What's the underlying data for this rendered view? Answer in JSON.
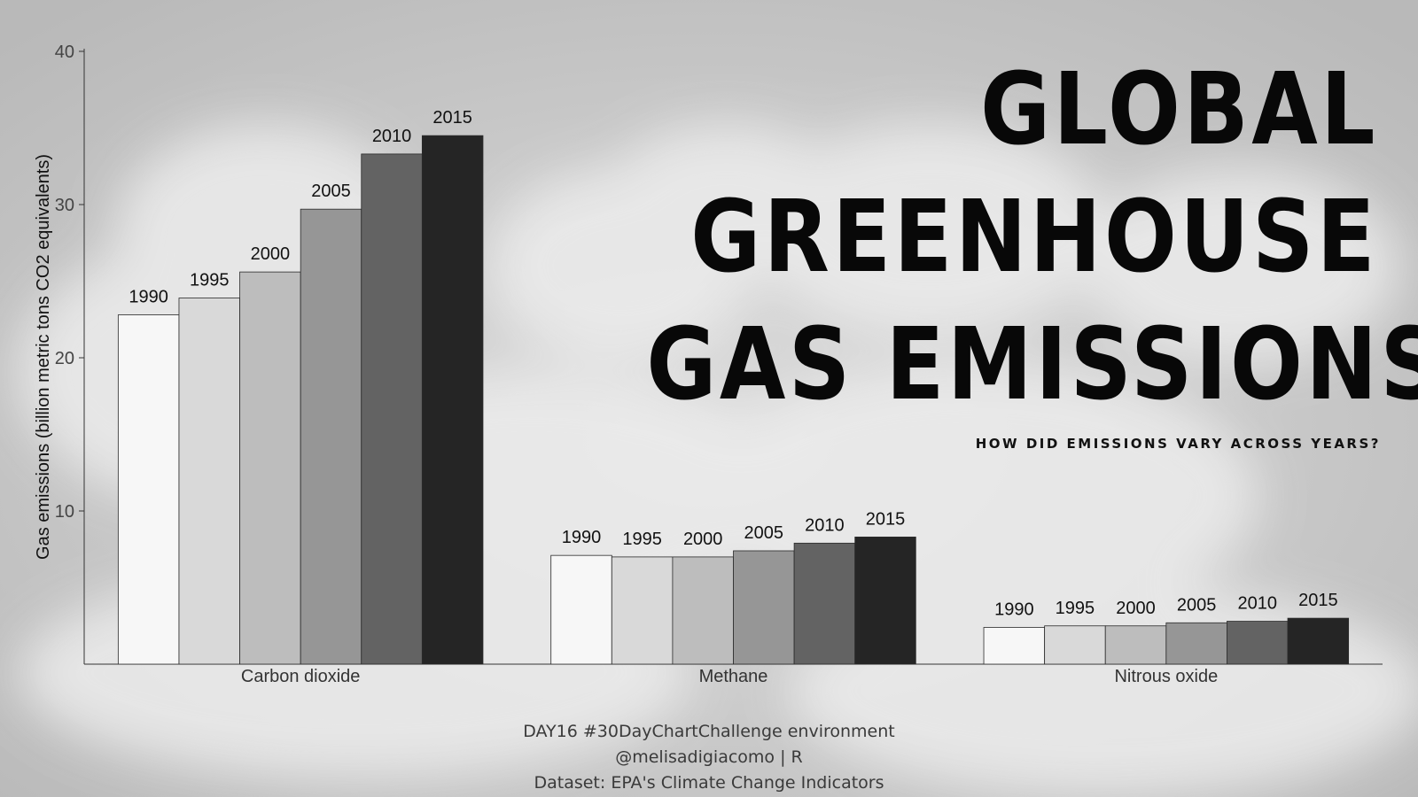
{
  "title_lines": [
    "GLOBAL",
    "GREENHOUSE",
    "GAS EMISSIONS"
  ],
  "subtitle": "HOW DID EMISSIONS VARY ACROSS YEARS?",
  "caption_lines": [
    "DAY16 #30DayChartChallenge environment",
    "@melisadigiacomo | R",
    "Dataset: EPA's Climate Change Indicators"
  ],
  "chart_data": {
    "type": "bar",
    "ylabel": "Gas emissions (billion metric tons CO2 equivalents)",
    "ylim": [
      0,
      40
    ],
    "yticks": [
      10,
      20,
      30,
      40
    ],
    "categories": [
      "Carbon dioxide",
      "Methane",
      "Nitrous oxide"
    ],
    "series": [
      {
        "name": "1990",
        "color": "#f7f7f7",
        "values": [
          22.8,
          7.1,
          2.4
        ]
      },
      {
        "name": "1995",
        "color": "#d9d9d9",
        "values": [
          23.9,
          7.0,
          2.5
        ]
      },
      {
        "name": "2000",
        "color": "#bdbdbd",
        "values": [
          25.6,
          7.0,
          2.5
        ]
      },
      {
        "name": "2005",
        "color": "#969696",
        "values": [
          29.7,
          7.4,
          2.7
        ]
      },
      {
        "name": "2010",
        "color": "#636363",
        "values": [
          33.3,
          7.9,
          2.8
        ]
      },
      {
        "name": "2015",
        "color": "#252525",
        "values": [
          34.5,
          8.3,
          3.0
        ]
      }
    ],
    "data_labels": "series-name-above-bar",
    "grid": false,
    "legend": "none"
  }
}
